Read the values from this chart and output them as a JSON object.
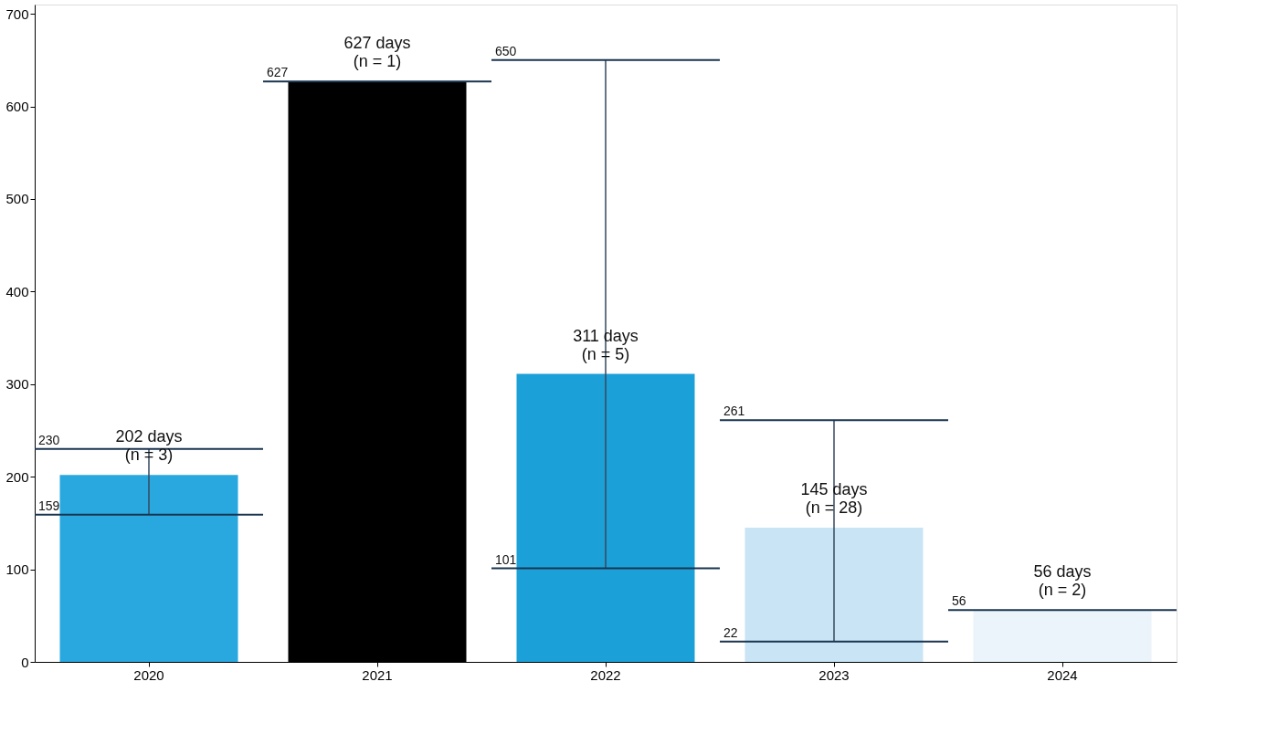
{
  "chart_data": {
    "type": "bar",
    "categories": [
      "2020",
      "2021",
      "2022",
      "2023",
      "2024"
    ],
    "values": [
      202,
      627,
      311,
      145,
      56
    ],
    "colors": [
      "#29a8e0",
      "#000000",
      "#1ca0d8",
      "#c8e4f5",
      "#eaf4fa"
    ],
    "errors": [
      [
        159,
        230
      ],
      [
        627,
        627
      ],
      [
        101,
        650
      ],
      [
        22,
        261
      ],
      [
        56,
        56
      ]
    ],
    "value_labels": [
      "202 days\n(n = 3)",
      "627 days\n(n = 1)",
      "311 days\n(n = 5)",
      "145 days\n(n = 28)",
      "56 days\n(n = 2)"
    ],
    "annotations": [
      "159",
      "230",
      "627",
      "101",
      "650",
      "22",
      "261",
      "56"
    ],
    "ylim": [
      0,
      710
    ],
    "yticks": [
      0,
      100,
      200,
      300,
      400,
      500,
      600,
      700
    ],
    "grid": false
  }
}
